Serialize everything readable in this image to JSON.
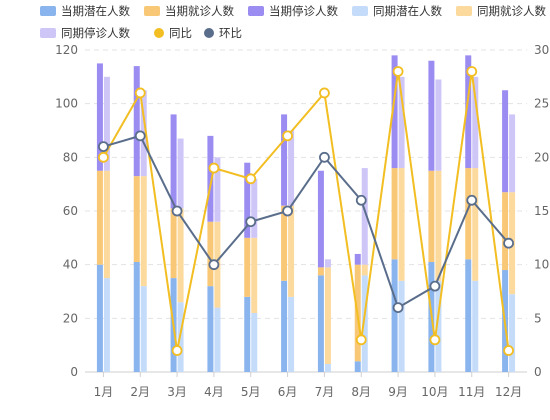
{
  "chart_data": {
    "type": "bar",
    "categories": [
      "1月",
      "2月",
      "3月",
      "4月",
      "5月",
      "6月",
      "7月",
      "8月",
      "9月",
      "10月",
      "11月",
      "12月"
    ],
    "left_axis": {
      "ylim": [
        0,
        120
      ],
      "ticks": [
        0,
        20,
        40,
        60,
        80,
        100,
        120
      ]
    },
    "right_axis": {
      "ylim": [
        0,
        30
      ],
      "ticks": [
        0,
        5,
        10,
        15,
        20,
        25,
        30
      ]
    },
    "grid": true,
    "legend_position": "top",
    "stacks": [
      {
        "stack": "current",
        "series": [
          {
            "name": "当期潜在人数",
            "color": "#8ab4ee",
            "values": [
              40,
              41,
              35,
              32,
              28,
              34,
              36,
              4,
              42,
              41,
              42,
              38
            ]
          },
          {
            "name": "当期就诊人数",
            "color": "#f9c877",
            "values": [
              35,
              32,
              26,
              24,
              22,
              28,
              3,
              36,
              34,
              34,
              34,
              29
            ]
          },
          {
            "name": "当期停诊人数",
            "color": "#9b8cf2",
            "values": [
              40,
              41,
              35,
              32,
              28,
              34,
              36,
              4,
              42,
              41,
              42,
              38
            ]
          }
        ]
      },
      {
        "stack": "previous",
        "series": [
          {
            "name": "同期潜在人数",
            "color": "#c4dcfa",
            "values": [
              35,
              32,
              26,
              24,
              22,
              28,
              3,
              36,
              34,
              34,
              34,
              29
            ]
          },
          {
            "name": "同期就诊人数",
            "color": "#fcd99c",
            "values": [
              40,
              41,
              35,
              32,
              28,
              34,
              36,
              4,
              42,
              41,
              42,
              38
            ]
          },
          {
            "name": "同期停诊人数",
            "color": "#cfc6f8",
            "values": [
              35,
              32,
              26,
              24,
              22,
              28,
              3,
              36,
              34,
              34,
              34,
              29
            ]
          }
        ]
      }
    ],
    "lines": [
      {
        "name": "同比",
        "color": "#f2be22",
        "axis": "right",
        "values": [
          20,
          26,
          2,
          19,
          18,
          22,
          26,
          3,
          28,
          3,
          28,
          2
        ]
      },
      {
        "name": "环比",
        "color": "#5a6e8c",
        "axis": "right",
        "values": [
          21,
          22,
          15,
          10,
          14,
          15,
          20,
          16,
          6,
          8,
          16,
          12
        ]
      }
    ]
  }
}
